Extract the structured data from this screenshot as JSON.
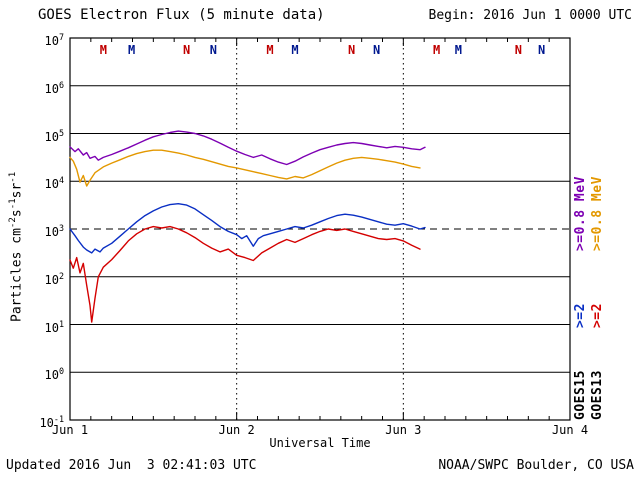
{
  "header": {
    "title": "GOES Electron Flux (5 minute data)",
    "begin_label": "Begin: 2016 Jun 1 0000 UTC"
  },
  "footer": {
    "updated": "Updated 2016 Jun  3 02:41:03 UTC",
    "source": "NOAA/SWPC Boulder, CO USA"
  },
  "chart_data": {
    "type": "line",
    "title": "GOES Electron Flux (5 minute data)",
    "xlabel": "Universal Time",
    "ylabel": "Particles cm-2 s-1 sr-1",
    "ylabel_parts": [
      {
        "t": "Particles cm"
      },
      {
        "s": "-2"
      },
      {
        "t": "s"
      },
      {
        "s": "-1"
      },
      {
        "t": "sr"
      },
      {
        "s": "-1"
      }
    ],
    "x_ticks": [
      "Jun 1",
      "Jun 2",
      "Jun 3",
      "Jun 4"
    ],
    "x_range_days": [
      0,
      3
    ],
    "y_scale": "log10",
    "y_log_range": [
      -1,
      7
    ],
    "y_tick_exponents": [
      -1,
      0,
      1,
      2,
      3,
      4,
      5,
      6,
      7
    ],
    "dashed_y_exponent": 3,
    "grid": "horizontal solid line per decade, vertical dotted lines at day boundaries, dashed threshold at 10^3",
    "legend_position": "right-rotated",
    "series": [
      {
        "name": "GOES15 >=0.8 MeV",
        "color": "#7d00b3",
        "points": [
          [
            0.0,
            4.72
          ],
          [
            0.03,
            4.62
          ],
          [
            0.05,
            4.68
          ],
          [
            0.08,
            4.55
          ],
          [
            0.1,
            4.6
          ],
          [
            0.12,
            4.48
          ],
          [
            0.15,
            4.52
          ],
          [
            0.17,
            4.44
          ],
          [
            0.2,
            4.5
          ],
          [
            0.25,
            4.56
          ],
          [
            0.3,
            4.63
          ],
          [
            0.35,
            4.7
          ],
          [
            0.4,
            4.78
          ],
          [
            0.45,
            4.86
          ],
          [
            0.5,
            4.93
          ],
          [
            0.55,
            4.98
          ],
          [
            0.6,
            5.02
          ],
          [
            0.65,
            5.05
          ],
          [
            0.7,
            5.03
          ],
          [
            0.75,
            5.0
          ],
          [
            0.8,
            4.95
          ],
          [
            0.85,
            4.88
          ],
          [
            0.9,
            4.8
          ],
          [
            0.95,
            4.71
          ],
          [
            1.0,
            4.63
          ],
          [
            1.05,
            4.56
          ],
          [
            1.1,
            4.5
          ],
          [
            1.15,
            4.55
          ],
          [
            1.2,
            4.47
          ],
          [
            1.25,
            4.4
          ],
          [
            1.3,
            4.35
          ],
          [
            1.35,
            4.42
          ],
          [
            1.4,
            4.51
          ],
          [
            1.45,
            4.59
          ],
          [
            1.5,
            4.66
          ],
          [
            1.55,
            4.71
          ],
          [
            1.6,
            4.76
          ],
          [
            1.65,
            4.79
          ],
          [
            1.7,
            4.81
          ],
          [
            1.75,
            4.79
          ],
          [
            1.8,
            4.76
          ],
          [
            1.85,
            4.73
          ],
          [
            1.9,
            4.7
          ],
          [
            1.95,
            4.73
          ],
          [
            2.0,
            4.71
          ],
          [
            2.05,
            4.68
          ],
          [
            2.1,
            4.66
          ],
          [
            2.13,
            4.71
          ]
        ]
      },
      {
        "name": "GOES13 >=0.8 MeV",
        "color": "#e39800",
        "points": [
          [
            0.0,
            4.5
          ],
          [
            0.02,
            4.42
          ],
          [
            0.04,
            4.25
          ],
          [
            0.06,
            3.98
          ],
          [
            0.08,
            4.12
          ],
          [
            0.1,
            3.9
          ],
          [
            0.12,
            4.02
          ],
          [
            0.15,
            4.18
          ],
          [
            0.2,
            4.3
          ],
          [
            0.25,
            4.38
          ],
          [
            0.3,
            4.45
          ],
          [
            0.35,
            4.52
          ],
          [
            0.4,
            4.58
          ],
          [
            0.45,
            4.62
          ],
          [
            0.5,
            4.65
          ],
          [
            0.55,
            4.65
          ],
          [
            0.6,
            4.62
          ],
          [
            0.65,
            4.59
          ],
          [
            0.7,
            4.55
          ],
          [
            0.75,
            4.5
          ],
          [
            0.8,
            4.46
          ],
          [
            0.85,
            4.41
          ],
          [
            0.9,
            4.36
          ],
          [
            0.95,
            4.31
          ],
          [
            1.0,
            4.28
          ],
          [
            1.05,
            4.24
          ],
          [
            1.1,
            4.2
          ],
          [
            1.15,
            4.16
          ],
          [
            1.2,
            4.12
          ],
          [
            1.25,
            4.08
          ],
          [
            1.3,
            4.05
          ],
          [
            1.35,
            4.1
          ],
          [
            1.4,
            4.07
          ],
          [
            1.45,
            4.14
          ],
          [
            1.5,
            4.22
          ],
          [
            1.55,
            4.3
          ],
          [
            1.6,
            4.38
          ],
          [
            1.65,
            4.44
          ],
          [
            1.7,
            4.48
          ],
          [
            1.75,
            4.5
          ],
          [
            1.8,
            4.48
          ],
          [
            1.85,
            4.46
          ],
          [
            1.9,
            4.43
          ],
          [
            1.95,
            4.4
          ],
          [
            2.0,
            4.36
          ],
          [
            2.05,
            4.31
          ],
          [
            2.1,
            4.28
          ]
        ]
      },
      {
        "name": "GOES15 >=2 MeV",
        "color": "#0a2fc4",
        "points": [
          [
            0.0,
            3.0
          ],
          [
            0.03,
            2.86
          ],
          [
            0.05,
            2.76
          ],
          [
            0.08,
            2.62
          ],
          [
            0.1,
            2.56
          ],
          [
            0.13,
            2.5
          ],
          [
            0.15,
            2.58
          ],
          [
            0.18,
            2.52
          ],
          [
            0.2,
            2.6
          ],
          [
            0.25,
            2.7
          ],
          [
            0.3,
            2.85
          ],
          [
            0.35,
            3.0
          ],
          [
            0.4,
            3.15
          ],
          [
            0.45,
            3.28
          ],
          [
            0.5,
            3.38
          ],
          [
            0.55,
            3.46
          ],
          [
            0.6,
            3.51
          ],
          [
            0.65,
            3.53
          ],
          [
            0.7,
            3.5
          ],
          [
            0.75,
            3.42
          ],
          [
            0.8,
            3.3
          ],
          [
            0.85,
            3.18
          ],
          [
            0.9,
            3.05
          ],
          [
            0.95,
            2.95
          ],
          [
            1.0,
            2.88
          ],
          [
            1.03,
            2.8
          ],
          [
            1.06,
            2.86
          ],
          [
            1.1,
            2.64
          ],
          [
            1.13,
            2.8
          ],
          [
            1.16,
            2.86
          ],
          [
            1.2,
            2.9
          ],
          [
            1.25,
            2.95
          ],
          [
            1.3,
            3.0
          ],
          [
            1.35,
            3.05
          ],
          [
            1.4,
            3.02
          ],
          [
            1.45,
            3.08
          ],
          [
            1.5,
            3.15
          ],
          [
            1.55,
            3.22
          ],
          [
            1.6,
            3.28
          ],
          [
            1.65,
            3.31
          ],
          [
            1.7,
            3.29
          ],
          [
            1.75,
            3.25
          ],
          [
            1.8,
            3.2
          ],
          [
            1.85,
            3.15
          ],
          [
            1.9,
            3.1
          ],
          [
            1.95,
            3.08
          ],
          [
            2.0,
            3.11
          ],
          [
            2.05,
            3.06
          ],
          [
            2.1,
            3.0
          ],
          [
            2.13,
            3.03
          ]
        ]
      },
      {
        "name": "GOES13 >=2 MeV",
        "color": "#d40000",
        "points": [
          [
            0.0,
            2.35
          ],
          [
            0.02,
            2.18
          ],
          [
            0.04,
            2.4
          ],
          [
            0.06,
            2.08
          ],
          [
            0.08,
            2.28
          ],
          [
            0.1,
            1.82
          ],
          [
            0.12,
            1.4
          ],
          [
            0.13,
            1.05
          ],
          [
            0.15,
            1.55
          ],
          [
            0.17,
            2.0
          ],
          [
            0.2,
            2.2
          ],
          [
            0.25,
            2.36
          ],
          [
            0.3,
            2.55
          ],
          [
            0.35,
            2.75
          ],
          [
            0.4,
            2.9
          ],
          [
            0.45,
            3.0
          ],
          [
            0.5,
            3.05
          ],
          [
            0.55,
            3.02
          ],
          [
            0.6,
            3.05
          ],
          [
            0.65,
            3.0
          ],
          [
            0.7,
            2.92
          ],
          [
            0.75,
            2.82
          ],
          [
            0.8,
            2.7
          ],
          [
            0.85,
            2.6
          ],
          [
            0.9,
            2.52
          ],
          [
            0.95,
            2.58
          ],
          [
            1.0,
            2.45
          ],
          [
            1.05,
            2.4
          ],
          [
            1.1,
            2.34
          ],
          [
            1.15,
            2.5
          ],
          [
            1.2,
            2.6
          ],
          [
            1.25,
            2.7
          ],
          [
            1.3,
            2.78
          ],
          [
            1.35,
            2.72
          ],
          [
            1.4,
            2.8
          ],
          [
            1.45,
            2.88
          ],
          [
            1.5,
            2.95
          ],
          [
            1.55,
            3.0
          ],
          [
            1.6,
            2.97
          ],
          [
            1.65,
            3.0
          ],
          [
            1.7,
            2.95
          ],
          [
            1.75,
            2.9
          ],
          [
            1.8,
            2.85
          ],
          [
            1.85,
            2.8
          ],
          [
            1.9,
            2.78
          ],
          [
            1.95,
            2.8
          ],
          [
            2.0,
            2.75
          ],
          [
            2.05,
            2.66
          ],
          [
            2.1,
            2.58
          ]
        ]
      }
    ],
    "event_markers": [
      {
        "label": "M",
        "x": 0.2,
        "color": "#c00000"
      },
      {
        "label": "M",
        "x": 0.37,
        "color": "#00188f"
      },
      {
        "label": "N",
        "x": 0.7,
        "color": "#c00000"
      },
      {
        "label": "N",
        "x": 0.86,
        "color": "#00188f"
      },
      {
        "label": "M",
        "x": 1.2,
        "color": "#c00000"
      },
      {
        "label": "M",
        "x": 1.35,
        "color": "#00188f"
      },
      {
        "label": "N",
        "x": 1.69,
        "color": "#c00000"
      },
      {
        "label": "N",
        "x": 1.84,
        "color": "#00188f"
      },
      {
        "label": "M",
        "x": 2.2,
        "color": "#c00000"
      },
      {
        "label": "M",
        "x": 2.33,
        "color": "#00188f"
      },
      {
        "label": "N",
        "x": 2.69,
        "color": "#c00000"
      },
      {
        "label": "N",
        "x": 2.83,
        "color": "#00188f"
      }
    ],
    "right_labels": [
      {
        "name": "legend-goes15",
        "parts": [
          {
            "text": "GOES15",
            "color": "#000000"
          },
          {
            "text": ">=2",
            "color": "#0a2fc4"
          },
          {
            "text": ">=0.8 MeV",
            "color": "#7d00b3"
          }
        ]
      },
      {
        "name": "legend-goes13",
        "parts": [
          {
            "text": "GOES13",
            "color": "#000000"
          },
          {
            "text": ">=2",
            "color": "#d40000"
          },
          {
            "text": ">=0.8 MeV",
            "color": "#e39800"
          }
        ]
      }
    ]
  }
}
